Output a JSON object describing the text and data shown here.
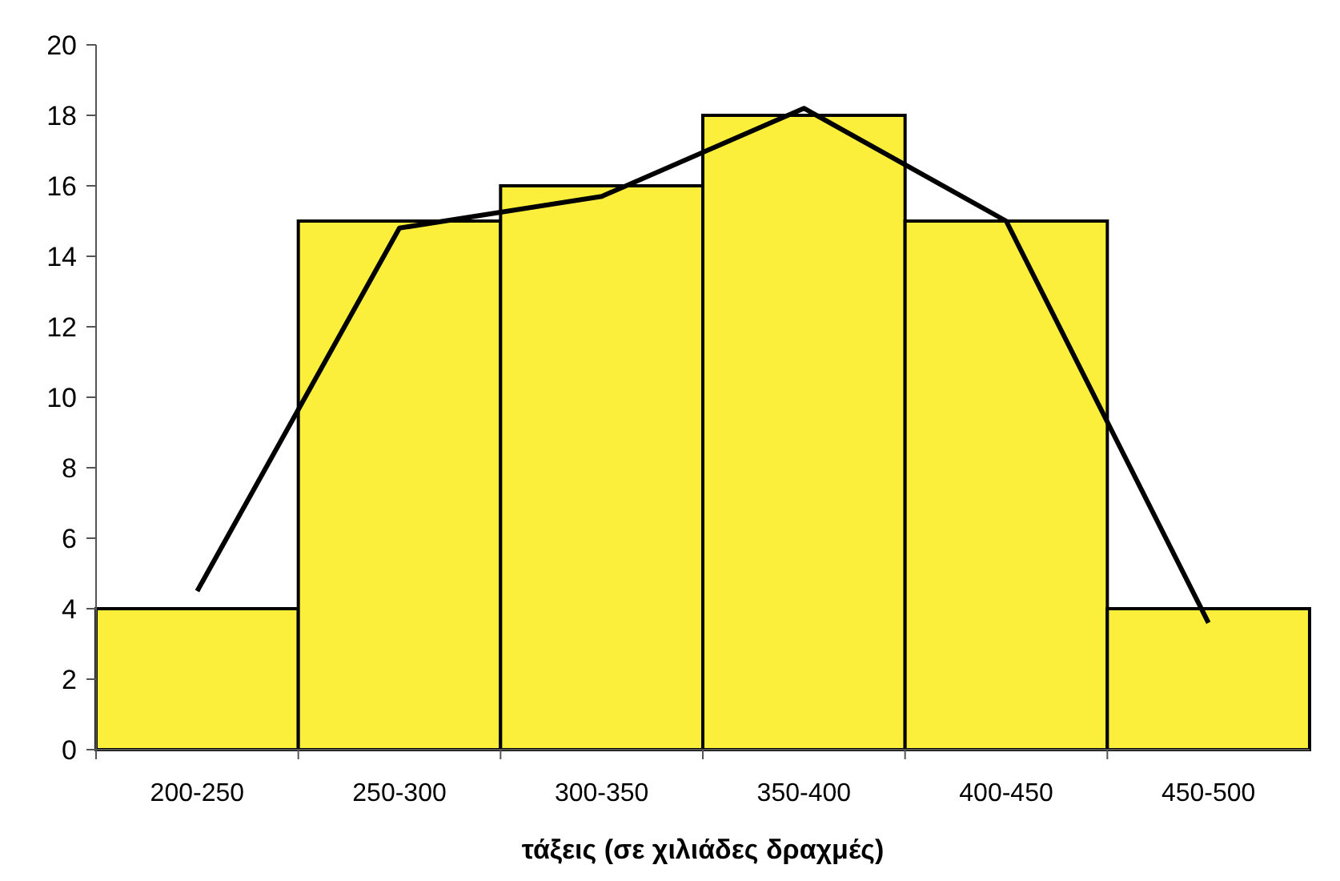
{
  "chart_data": {
    "type": "bar",
    "xlabel": "τάξεις (σε χιλιάδες δραχμές)",
    "categories": [
      "200-250",
      "250-300",
      "300-350",
      "350-400",
      "400-450",
      "450-500"
    ],
    "series": [
      {
        "color": "#fcef3c",
        "values": [
          4,
          15,
          16,
          18,
          15,
          4
        ]
      },
      {
        "type": "line",
        "color": "#000000",
        "values": [
          4.5,
          14.8,
          15.7,
          18.2,
          15,
          3.6
        ]
      }
    ],
    "ylim": [
      0,
      20
    ],
    "yticks": [
      0,
      2,
      4,
      6,
      8,
      10,
      12,
      14,
      16,
      18,
      20
    ],
    "marker": "none",
    "line_style": "solid"
  }
}
